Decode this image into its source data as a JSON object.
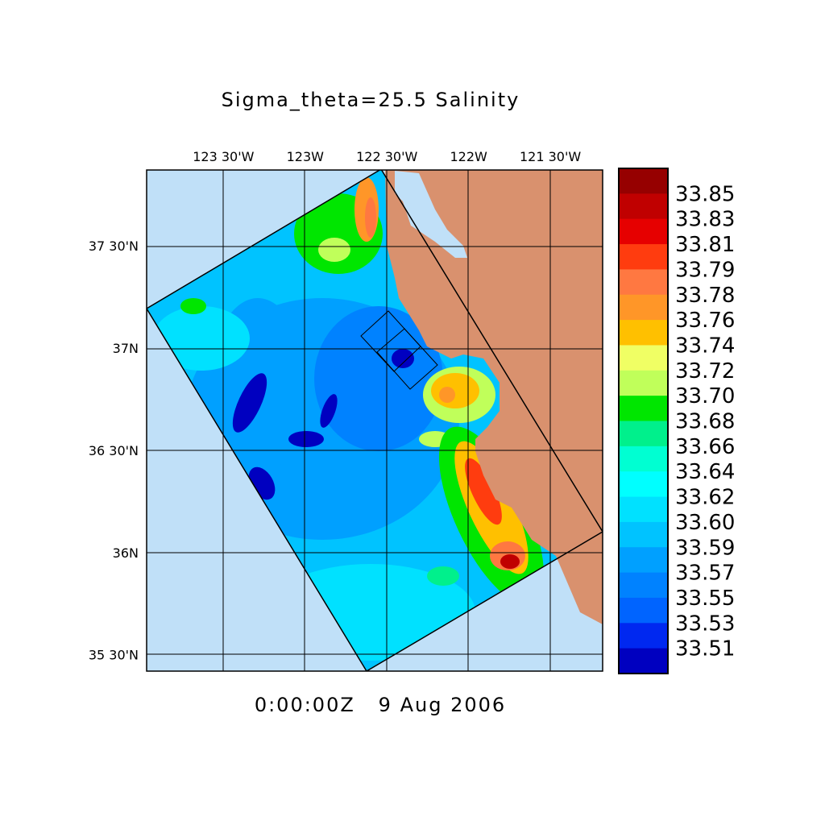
{
  "title": "Sigma_theta=25.5 Salinity",
  "time_label": "0:00:00Z   9 Aug 2006",
  "chart_data": {
    "type": "heatmap",
    "title": "Sigma_theta=25.5 Salinity",
    "lon_ticks": [
      {
        "value": -123.5,
        "label": "123 30'W"
      },
      {
        "value": -123.0,
        "label": "123W"
      },
      {
        "value": -122.5,
        "label": "122 30'W"
      },
      {
        "value": -122.0,
        "label": "122W"
      },
      {
        "value": -121.5,
        "label": "121 30'W"
      }
    ],
    "lat_ticks": [
      {
        "value": 37.5,
        "label": "37 30'N"
      },
      {
        "value": 37.0,
        "label": "37N"
      },
      {
        "value": 36.5,
        "label": "36 30'N"
      },
      {
        "value": 36.0,
        "label": "36N"
      },
      {
        "value": 35.5,
        "label": "35 30'N"
      }
    ],
    "lon_range": [
      -123.97,
      -121.18
    ],
    "lat_range": [
      35.42,
      37.87
    ],
    "grid": true,
    "colorbar": {
      "placement": "right",
      "levels": [
        "33.85",
        "33.83",
        "33.81",
        "33.79",
        "33.78",
        "33.76",
        "33.74",
        "33.72",
        "33.70",
        "33.68",
        "33.66",
        "33.64",
        "33.62",
        "33.60",
        "33.59",
        "33.57",
        "33.55",
        "33.53",
        "33.51"
      ],
      "colors": [
        "#960000",
        "#c00000",
        "#e60000",
        "#ff3c0f",
        "#ff7841",
        "#ff9628",
        "#ffc000",
        "#f0ff64",
        "#c0ff5a",
        "#00e600",
        "#00f08c",
        "#00ffd2",
        "#00ffff",
        "#00e1ff",
        "#00c3ff",
        "#00a0ff",
        "#0082ff",
        "#0064ff",
        "#0028f0",
        "#0000c0"
      ]
    },
    "colors": {
      "land": "#d9916e",
      "ocean_outside": "#c0e0f8"
    }
  }
}
